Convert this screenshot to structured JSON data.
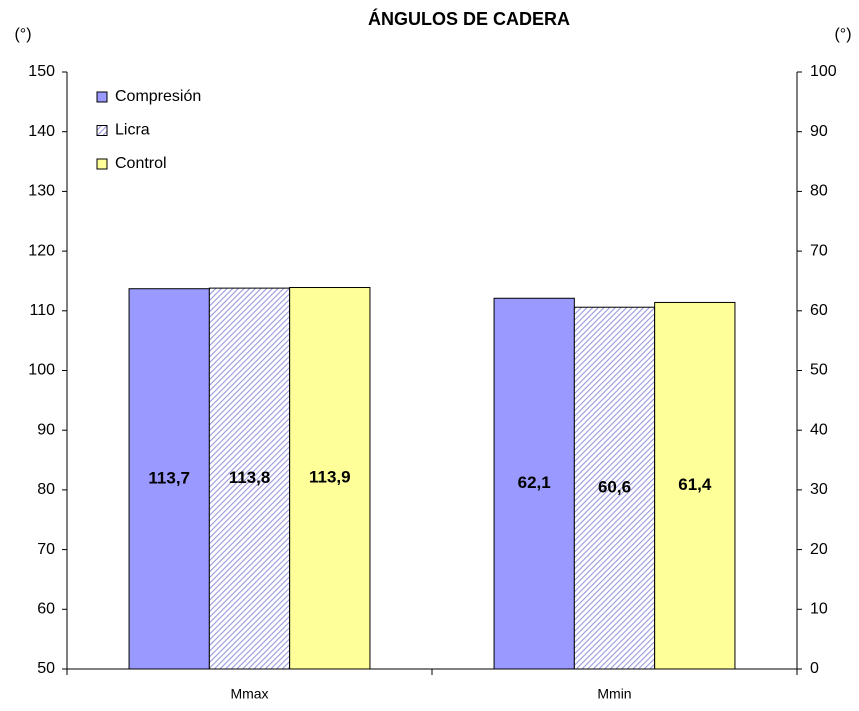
{
  "chart_data": {
    "type": "bar",
    "title": "ÁNGULOS DE CADERA",
    "y_label": "(°)",
    "y2_label": "(°)",
    "categories": [
      "Mmax",
      "Mmin"
    ],
    "category_axis": [
      "y",
      "y2"
    ],
    "series": [
      {
        "name": "Compresión",
        "color": "#9999ff",
        "values": [
          113.7,
          62.1
        ],
        "value_labels": [
          "113,7",
          "62,1"
        ]
      },
      {
        "name": "Licra",
        "color": "#ccccff",
        "pattern": "hatch",
        "values": [
          113.8,
          60.6
        ],
        "value_labels": [
          "113,8",
          "60,6"
        ]
      },
      {
        "name": "Control",
        "color": "#ffff99",
        "values": [
          113.9,
          61.4
        ],
        "value_labels": [
          "113,9",
          "61,4"
        ]
      }
    ],
    "ylim": [
      50,
      150
    ],
    "yticks": [
      50,
      60,
      70,
      80,
      90,
      100,
      110,
      120,
      130,
      140,
      150
    ],
    "y2lim": [
      0,
      100
    ],
    "y2ticks": [
      0,
      10,
      20,
      30,
      40,
      50,
      60,
      70,
      80,
      90,
      100
    ],
    "legend": "upper left"
  }
}
